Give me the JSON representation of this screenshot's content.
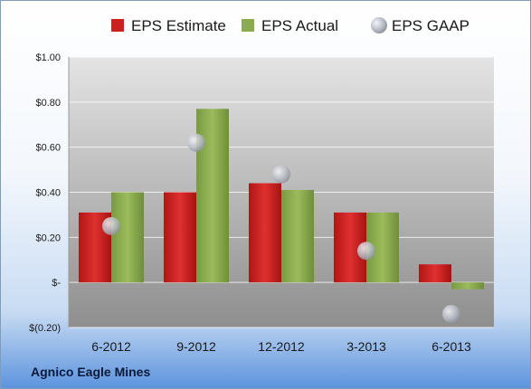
{
  "company": "Agnico Eagle Mines",
  "colors": {
    "estimate": "#cc1f1f",
    "actual": "#8aab4f",
    "gaap": "#b8bcc4"
  },
  "chart_data": {
    "type": "bar",
    "categories": [
      "6-2012",
      "9-2012",
      "12-2012",
      "3-2013",
      "6-2013"
    ],
    "series": [
      {
        "name": "EPS Estimate",
        "style": "bar",
        "values": [
          0.31,
          0.4,
          0.44,
          0.31,
          0.08
        ]
      },
      {
        "name": "EPS Actual",
        "style": "bar",
        "values": [
          0.4,
          0.77,
          0.41,
          0.31,
          -0.03
        ]
      },
      {
        "name": "EPS GAAP",
        "style": "marker",
        "values": [
          0.25,
          0.62,
          0.48,
          0.14,
          -0.14
        ]
      }
    ],
    "y_ticks": [
      {
        "value": 1.0,
        "label": "$1.00"
      },
      {
        "value": 0.8,
        "label": "$0.80"
      },
      {
        "value": 0.6,
        "label": "$0.60"
      },
      {
        "value": 0.4,
        "label": "$0.40"
      },
      {
        "value": 0.2,
        "label": "$0.20"
      },
      {
        "value": 0.0,
        "label": "$-"
      },
      {
        "value": -0.2,
        "label": "$(0.20)"
      }
    ],
    "ylim": [
      -0.2,
      1.0
    ],
    "grid": true,
    "legend_position": "top"
  }
}
